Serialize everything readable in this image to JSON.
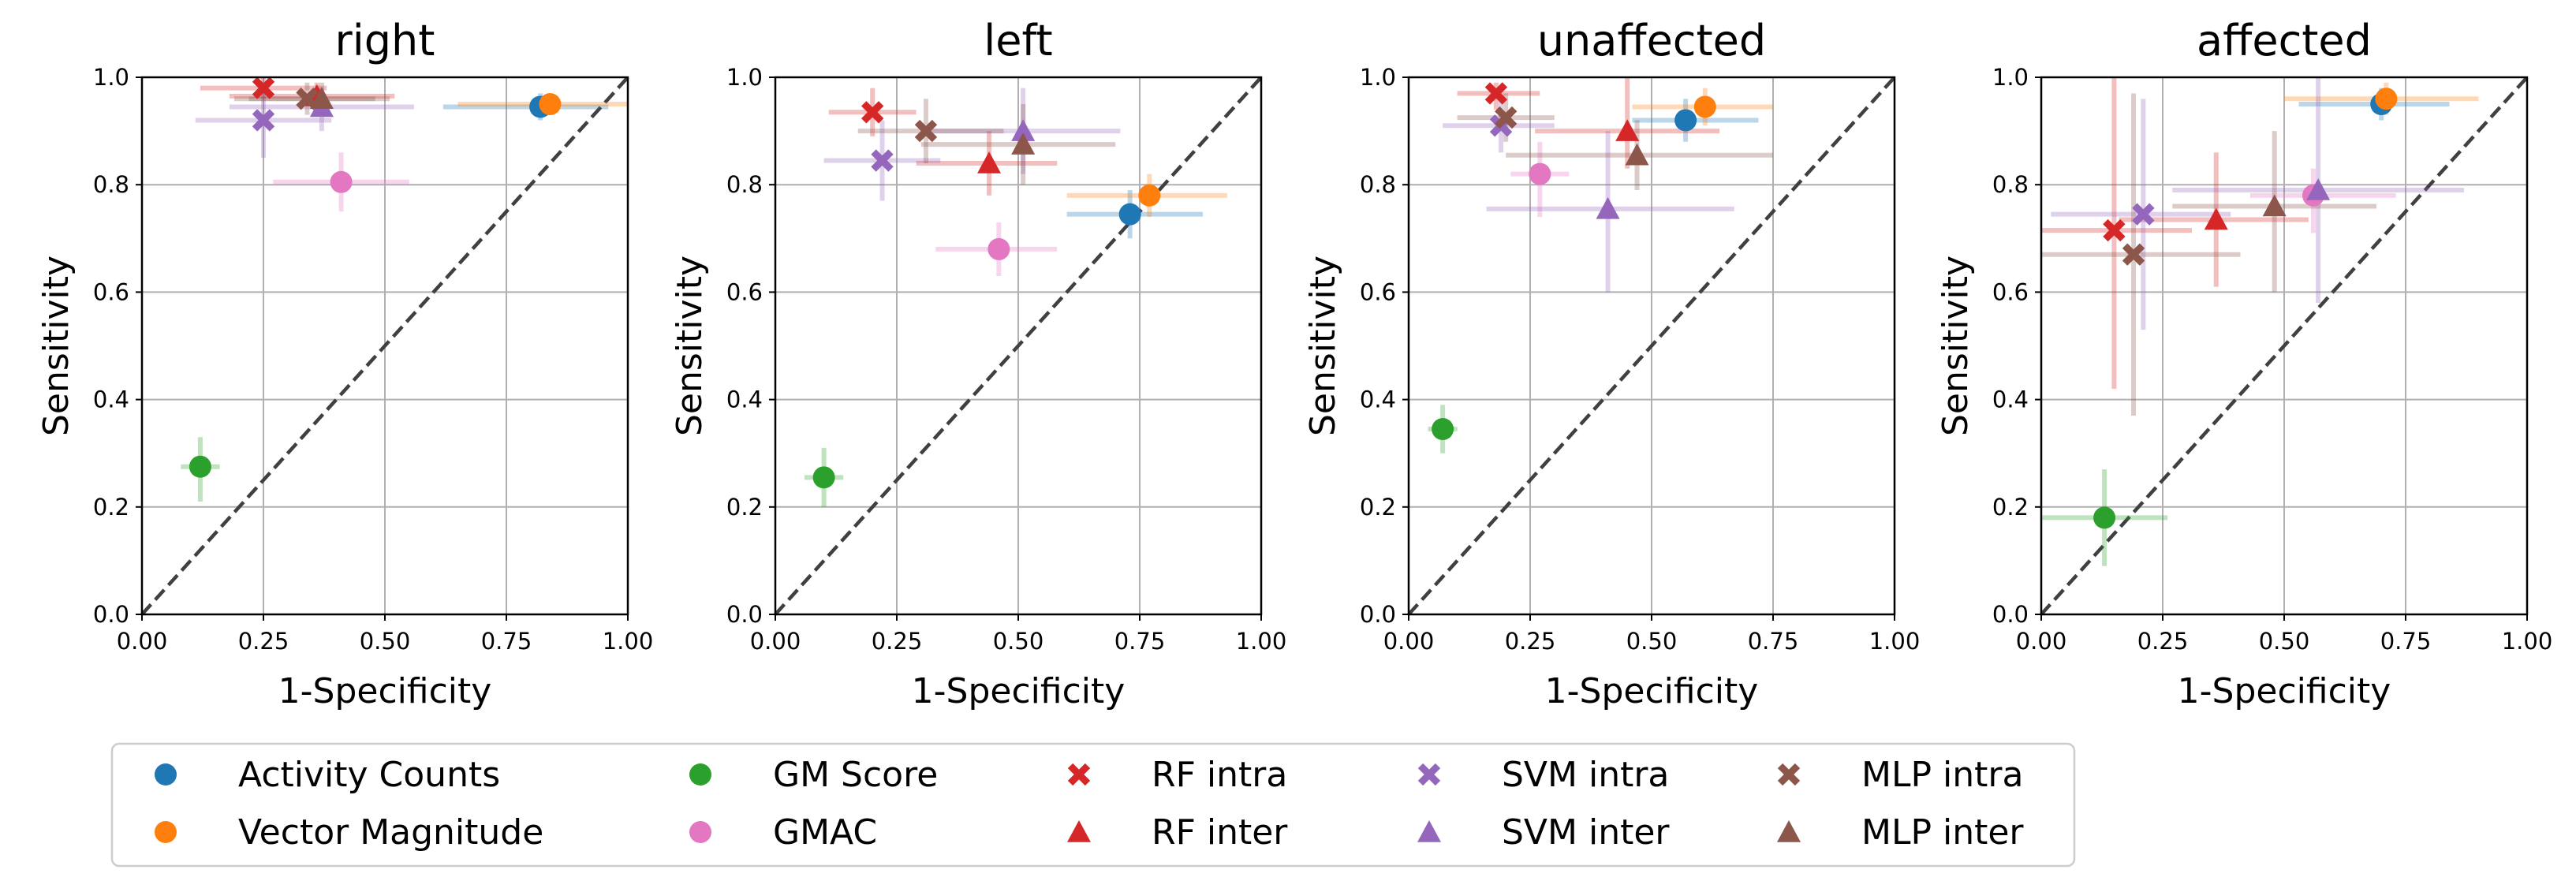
{
  "chart_data": {
    "type": "scatter",
    "legend_placement": "bottom",
    "series_styles": [
      {
        "name": "Activity Counts",
        "color": "#1f77b4",
        "marker": "circle"
      },
      {
        "name": "Vector Magnitude",
        "color": "#ff7f0e",
        "marker": "circle"
      },
      {
        "name": "GM Score",
        "color": "#2ca02c",
        "marker": "circle"
      },
      {
        "name": "GMAC",
        "color": "#e377c2",
        "marker": "circle"
      },
      {
        "name": "RF intra",
        "color": "#d62728",
        "marker": "x"
      },
      {
        "name": "RF inter",
        "color": "#d62728",
        "marker": "triangle"
      },
      {
        "name": "SVM intra",
        "color": "#9467bd",
        "marker": "x"
      },
      {
        "name": "SVM inter",
        "color": "#9467bd",
        "marker": "triangle"
      },
      {
        "name": "MLP intra",
        "color": "#8c564b",
        "marker": "x"
      },
      {
        "name": "MLP inter",
        "color": "#8c564b",
        "marker": "triangle"
      }
    ],
    "panels": [
      {
        "title": "right",
        "xlabel": "1-Specificity",
        "ylabel": "Sensitivity",
        "xlim": [
          0,
          1
        ],
        "ylim": [
          0,
          1
        ],
        "xticks": [
          "0.00",
          "0.25",
          "0.50",
          "0.75",
          "1.00"
        ],
        "yticks": [
          "0.0",
          "0.2",
          "0.4",
          "0.6",
          "0.8",
          "1.0"
        ],
        "grid": true,
        "diagonal": true,
        "points": [
          {
            "series": "Activity Counts",
            "x": 0.82,
            "y": 0.945,
            "xerr": [
              0.62,
              0.96
            ],
            "yerr": [
              0.92,
              0.97
            ]
          },
          {
            "series": "Vector Magnitude",
            "x": 0.84,
            "y": 0.95,
            "xerr": [
              0.65,
              1.0
            ],
            "yerr": [
              0.93,
              0.97
            ]
          },
          {
            "series": "GM Score",
            "x": 0.12,
            "y": 0.275,
            "xerr": [
              0.08,
              0.16
            ],
            "yerr": [
              0.21,
              0.33
            ]
          },
          {
            "series": "GMAC",
            "x": 0.41,
            "y": 0.805,
            "xerr": [
              0.27,
              0.55
            ],
            "yerr": [
              0.75,
              0.86
            ]
          },
          {
            "series": "RF intra",
            "x": 0.25,
            "y": 0.98,
            "xerr": [
              0.12,
              0.38
            ],
            "yerr": [
              0.96,
              1.0
            ]
          },
          {
            "series": "RF inter",
            "x": 0.36,
            "y": 0.965,
            "xerr": [
              0.18,
              0.52
            ],
            "yerr": [
              0.94,
              0.99
            ]
          },
          {
            "series": "SVM intra",
            "x": 0.25,
            "y": 0.92,
            "xerr": [
              0.11,
              0.39
            ],
            "yerr": [
              0.85,
              0.98
            ]
          },
          {
            "series": "SVM inter",
            "x": 0.37,
            "y": 0.945,
            "xerr": [
              0.18,
              0.56
            ],
            "yerr": [
              0.9,
              0.98
            ]
          },
          {
            "series": "MLP intra",
            "x": 0.34,
            "y": 0.96,
            "xerr": [
              0.19,
              0.48
            ],
            "yerr": [
              0.93,
              0.99
            ]
          },
          {
            "series": "MLP inter",
            "x": 0.37,
            "y": 0.96,
            "xerr": [
              0.22,
              0.51
            ],
            "yerr": [
              0.93,
              0.99
            ]
          }
        ]
      },
      {
        "title": "left",
        "xlabel": "1-Specificity",
        "ylabel": "Sensitivity",
        "xlim": [
          0,
          1
        ],
        "ylim": [
          0,
          1
        ],
        "xticks": [
          "0.00",
          "0.25",
          "0.50",
          "0.75",
          "1.00"
        ],
        "yticks": [
          "0.0",
          "0.2",
          "0.4",
          "0.6",
          "0.8",
          "1.0"
        ],
        "grid": true,
        "diagonal": true,
        "points": [
          {
            "series": "Activity Counts",
            "x": 0.73,
            "y": 0.745,
            "xerr": [
              0.6,
              0.88
            ],
            "yerr": [
              0.7,
              0.79
            ]
          },
          {
            "series": "Vector Magnitude",
            "x": 0.77,
            "y": 0.78,
            "xerr": [
              0.6,
              0.93
            ],
            "yerr": [
              0.74,
              0.82
            ]
          },
          {
            "series": "GM Score",
            "x": 0.1,
            "y": 0.255,
            "xerr": [
              0.06,
              0.14
            ],
            "yerr": [
              0.2,
              0.31
            ]
          },
          {
            "series": "GMAC",
            "x": 0.46,
            "y": 0.68,
            "xerr": [
              0.33,
              0.58
            ],
            "yerr": [
              0.63,
              0.73
            ]
          },
          {
            "series": "RF intra",
            "x": 0.2,
            "y": 0.935,
            "xerr": [
              0.11,
              0.29
            ],
            "yerr": [
              0.89,
              0.98
            ]
          },
          {
            "series": "RF inter",
            "x": 0.44,
            "y": 0.84,
            "xerr": [
              0.29,
              0.58
            ],
            "yerr": [
              0.78,
              0.9
            ]
          },
          {
            "series": "SVM intra",
            "x": 0.22,
            "y": 0.845,
            "xerr": [
              0.1,
              0.34
            ],
            "yerr": [
              0.77,
              0.92
            ]
          },
          {
            "series": "SVM inter",
            "x": 0.51,
            "y": 0.9,
            "xerr": [
              0.3,
              0.71
            ],
            "yerr": [
              0.82,
              0.98
            ]
          },
          {
            "series": "MLP intra",
            "x": 0.31,
            "y": 0.9,
            "xerr": [
              0.17,
              0.47
            ],
            "yerr": [
              0.84,
              0.96
            ]
          },
          {
            "series": "MLP inter",
            "x": 0.51,
            "y": 0.875,
            "xerr": [
              0.3,
              0.7
            ],
            "yerr": [
              0.8,
              0.95
            ]
          }
        ]
      },
      {
        "title": "unaffected",
        "xlabel": "1-Specificity",
        "ylabel": "Sensitivity",
        "xlim": [
          0,
          1
        ],
        "ylim": [
          0,
          1
        ],
        "xticks": [
          "0.00",
          "0.25",
          "0.50",
          "0.75",
          "1.00"
        ],
        "yticks": [
          "0.0",
          "0.2",
          "0.4",
          "0.6",
          "0.8",
          "1.0"
        ],
        "grid": true,
        "diagonal": true,
        "points": [
          {
            "series": "Activity Counts",
            "x": 0.57,
            "y": 0.92,
            "xerr": [
              0.46,
              0.72
            ],
            "yerr": [
              0.88,
              0.96
            ]
          },
          {
            "series": "Vector Magnitude",
            "x": 0.61,
            "y": 0.945,
            "xerr": [
              0.46,
              0.75
            ],
            "yerr": [
              0.91,
              0.98
            ]
          },
          {
            "series": "GM Score",
            "x": 0.07,
            "y": 0.345,
            "xerr": [
              0.04,
              0.1
            ],
            "yerr": [
              0.3,
              0.39
            ]
          },
          {
            "series": "GMAC",
            "x": 0.27,
            "y": 0.82,
            "xerr": [
              0.21,
              0.33
            ],
            "yerr": [
              0.74,
              0.88
            ]
          },
          {
            "series": "RF intra",
            "x": 0.18,
            "y": 0.97,
            "xerr": [
              0.1,
              0.27
            ],
            "yerr": [
              0.94,
              0.99
            ]
          },
          {
            "series": "RF inter",
            "x": 0.45,
            "y": 0.9,
            "xerr": [
              0.26,
              0.64
            ],
            "yerr": [
              0.83,
              1.0
            ]
          },
          {
            "series": "SVM intra",
            "x": 0.19,
            "y": 0.91,
            "xerr": [
              0.07,
              0.3
            ],
            "yerr": [
              0.86,
              0.96
            ]
          },
          {
            "series": "SVM inter",
            "x": 0.41,
            "y": 0.755,
            "xerr": [
              0.16,
              0.67
            ],
            "yerr": [
              0.6,
              0.9
            ]
          },
          {
            "series": "MLP intra",
            "x": 0.2,
            "y": 0.925,
            "xerr": [
              0.1,
              0.3
            ],
            "yerr": [
              0.88,
              0.97
            ]
          },
          {
            "series": "MLP inter",
            "x": 0.47,
            "y": 0.855,
            "xerr": [
              0.2,
              0.75
            ],
            "yerr": [
              0.79,
              0.92
            ]
          }
        ]
      },
      {
        "title": "affected",
        "xlabel": "1-Specificity",
        "ylabel": "Sensitivity",
        "xlim": [
          0,
          1
        ],
        "ylim": [
          0,
          1
        ],
        "xticks": [
          "0.00",
          "0.25",
          "0.50",
          "0.75",
          "1.00"
        ],
        "yticks": [
          "0.0",
          "0.2",
          "0.4",
          "0.6",
          "0.8",
          "1.0"
        ],
        "grid": true,
        "diagonal": true,
        "points": [
          {
            "series": "Activity Counts",
            "x": 0.7,
            "y": 0.95,
            "xerr": [
              0.53,
              0.84
            ],
            "yerr": [
              0.92,
              0.98
            ]
          },
          {
            "series": "Vector Magnitude",
            "x": 0.71,
            "y": 0.96,
            "xerr": [
              0.5,
              0.9
            ],
            "yerr": [
              0.93,
              0.99
            ]
          },
          {
            "series": "GM Score",
            "x": 0.13,
            "y": 0.18,
            "xerr": [
              0.0,
              0.26
            ],
            "yerr": [
              0.09,
              0.27
            ]
          },
          {
            "series": "GMAC",
            "x": 0.56,
            "y": 0.78,
            "xerr": [
              0.43,
              0.73
            ],
            "yerr": [
              0.71,
              0.83
            ]
          },
          {
            "series": "RF intra",
            "x": 0.15,
            "y": 0.715,
            "xerr": [
              0.0,
              0.31
            ],
            "yerr": [
              0.42,
              1.0
            ]
          },
          {
            "series": "RF inter",
            "x": 0.36,
            "y": 0.735,
            "xerr": [
              0.16,
              0.55
            ],
            "yerr": [
              0.61,
              0.86
            ]
          },
          {
            "series": "SVM intra",
            "x": 0.21,
            "y": 0.745,
            "xerr": [
              0.02,
              0.39
            ],
            "yerr": [
              0.53,
              0.96
            ]
          },
          {
            "series": "SVM inter",
            "x": 0.57,
            "y": 0.79,
            "xerr": [
              0.27,
              0.87
            ],
            "yerr": [
              0.58,
              1.0
            ]
          },
          {
            "series": "MLP intra",
            "x": 0.19,
            "y": 0.67,
            "xerr": [
              0.0,
              0.41
            ],
            "yerr": [
              0.37,
              0.97
            ]
          },
          {
            "series": "MLP inter",
            "x": 0.48,
            "y": 0.76,
            "xerr": [
              0.27,
              0.69
            ],
            "yerr": [
              0.6,
              0.9
            ]
          }
        ]
      }
    ]
  }
}
